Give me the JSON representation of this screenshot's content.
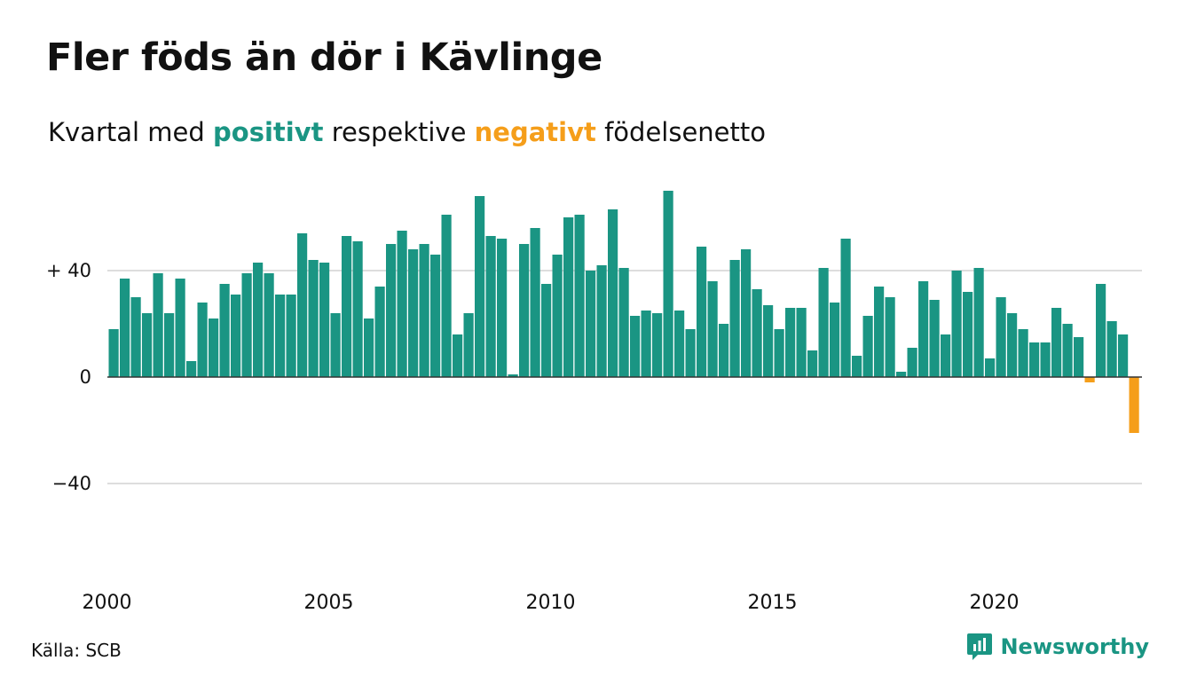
{
  "title": "Fler föds än dör i Kävlinge",
  "subtitle": {
    "prefix": "Kvartal med ",
    "positive": "positivt",
    "middle": " respektive ",
    "negative": "negativt",
    "suffix": " födelsenetto"
  },
  "source": "Källa: SCB",
  "brand": {
    "name": "Newsworthy",
    "icon": "newsworthy-logo-icon"
  },
  "colors": {
    "positive": "#1a9583",
    "negative": "#f59e1a",
    "grid": "#dddddd",
    "axis": "#333333"
  },
  "chart_data": {
    "type": "bar",
    "x_start": "2000 Q1",
    "x_ticks": [
      "2000",
      "2005",
      "2010",
      "2015",
      "2020"
    ],
    "y_ticks": [
      "+ 40",
      "0",
      "−40"
    ],
    "y_tick_values": [
      40,
      0,
      -40
    ],
    "ylim": [
      -65,
      72
    ],
    "grid": true,
    "values": [
      18,
      37,
      30,
      24,
      39,
      24,
      37,
      6,
      28,
      22,
      35,
      31,
      39,
      43,
      39,
      31,
      31,
      54,
      44,
      43,
      24,
      53,
      51,
      22,
      34,
      50,
      55,
      48,
      50,
      46,
      61,
      16,
      24,
      68,
      53,
      52,
      1,
      50,
      56,
      35,
      46,
      60,
      61,
      40,
      42,
      63,
      41,
      23,
      25,
      24,
      70,
      25,
      18,
      49,
      36,
      20,
      44,
      48,
      33,
      27,
      18,
      26,
      26,
      10,
      41,
      28,
      52,
      8,
      23,
      34,
      30,
      2,
      11,
      36,
      29,
      16,
      40,
      32,
      41,
      7,
      30,
      24,
      18,
      13,
      13,
      26,
      20,
      15,
      -2,
      35,
      21,
      16,
      -21
    ]
  }
}
